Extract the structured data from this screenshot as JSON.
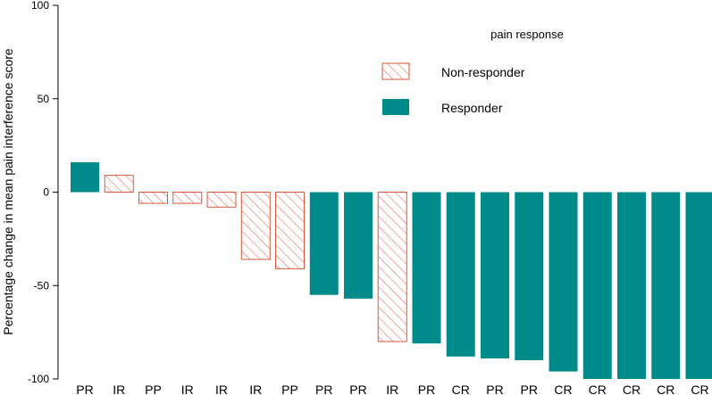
{
  "chart_data": {
    "type": "bar",
    "title": "",
    "xlabel": "",
    "ylabel": "Percentage change in mean pain interference score",
    "ylim": [
      -100,
      100
    ],
    "yticks": [
      100,
      50,
      0,
      -50,
      -100
    ],
    "categories": [
      "PR",
      "IR",
      "PP",
      "IR",
      "IR",
      "IR",
      "PP",
      "PR",
      "PR",
      "IR",
      "PR",
      "CR",
      "PR",
      "PR",
      "CR",
      "CR",
      "CR",
      "CR",
      "CR"
    ],
    "values": [
      16,
      9,
      -6,
      -6,
      -8,
      -36,
      -41,
      -55,
      -57,
      -80,
      -81,
      -88,
      -89,
      -90,
      -96,
      -100,
      -100,
      -100,
      -100
    ],
    "groups": [
      "Responder",
      "Non-responder",
      "Non-responder",
      "Non-responder",
      "Non-responder",
      "Non-responder",
      "Non-responder",
      "Responder",
      "Responder",
      "Non-responder",
      "Responder",
      "Responder",
      "Responder",
      "Responder",
      "Responder",
      "Responder",
      "Responder",
      "Responder",
      "Responder"
    ],
    "legend": {
      "title": "pain response",
      "placement": "top-right",
      "entries": [
        {
          "label": "Non-responder",
          "style": "hatched",
          "color": "#d9563a"
        },
        {
          "label": "Responder",
          "style": "solid",
          "color": "#008b8b"
        }
      ]
    },
    "colors": {
      "responder": "#008b8b",
      "nonresponder": "#d9563a"
    }
  }
}
